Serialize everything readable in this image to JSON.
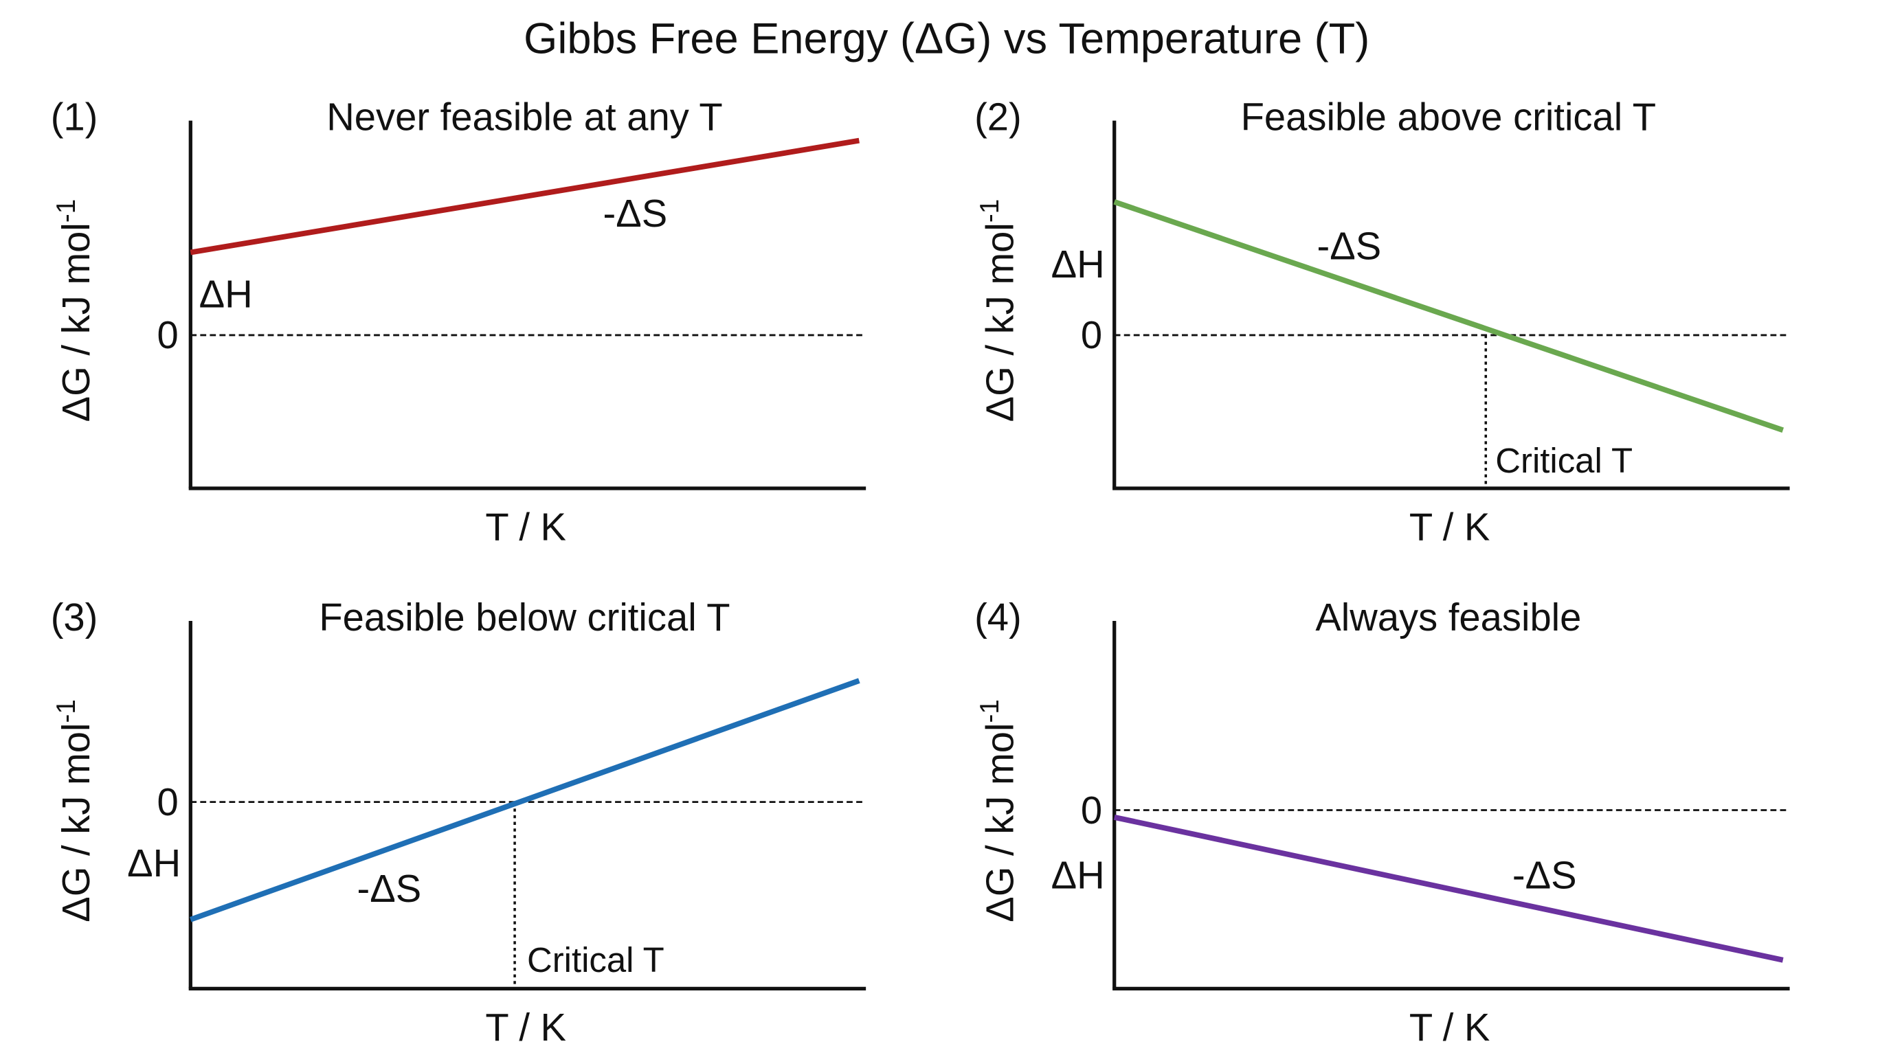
{
  "title": "Gibbs Free Energy (ΔG) vs Temperature (T)",
  "chart_data": [
    {
      "type": "line",
      "panel_label": "(1)",
      "title": "Never feasible at any T",
      "xlabel": "T / K",
      "ylabel": "ΔG / kJ mol⁻¹",
      "zero_label": "0",
      "xlim": [
        0,
        1
      ],
      "ylim": [
        -1,
        1.4
      ],
      "color": "#b01c1c",
      "series": [
        {
          "x": [
            0,
            0.99
          ],
          "y": [
            0.54,
            1.27
          ]
        }
      ],
      "annotations": {
        "intercept": "ΔH",
        "slope": "-ΔS"
      },
      "critical_T": null
    },
    {
      "type": "line",
      "panel_label": "(2)",
      "title": "Feasible above critical T",
      "xlabel": "T / K",
      "ylabel": "ΔG / kJ mol⁻¹",
      "zero_label": "0",
      "xlim": [
        0,
        1
      ],
      "ylim": [
        -1,
        1.4
      ],
      "color": "#6aa84f",
      "series": [
        {
          "x": [
            0,
            0.99
          ],
          "y": [
            0.87,
            -0.62
          ]
        }
      ],
      "annotations": {
        "intercept": "ΔH",
        "slope": "-ΔS",
        "critical": "Critical T"
      },
      "critical_T": 0.55
    },
    {
      "type": "line",
      "panel_label": "(3)",
      "title": "Feasible below critical T",
      "xlabel": "T / K",
      "ylabel": "ΔG / kJ mol⁻¹",
      "zero_label": "0",
      "xlim": [
        0,
        1
      ],
      "ylim": [
        -1,
        0.97
      ],
      "color": "#1f6fb5",
      "series": [
        {
          "x": [
            0,
            0.99
          ],
          "y": [
            -0.63,
            0.65
          ]
        }
      ],
      "annotations": {
        "intercept": "ΔH",
        "slope": "-ΔS",
        "critical": "Critical T"
      },
      "critical_T": 0.48
    },
    {
      "type": "line",
      "panel_label": "(4)",
      "title": "Always feasible",
      "xlabel": "T / K",
      "ylabel": "ΔG / kJ mol⁻¹",
      "zero_label": "0",
      "xlim": [
        0,
        1
      ],
      "ylim": [
        -1,
        1.06
      ],
      "color": "#6a329f",
      "series": [
        {
          "x": [
            0,
            0.99
          ],
          "y": [
            -0.04,
            -0.84
          ]
        }
      ],
      "annotations": {
        "intercept": "ΔH",
        "slope": "-ΔS"
      },
      "critical_T": null
    }
  ]
}
